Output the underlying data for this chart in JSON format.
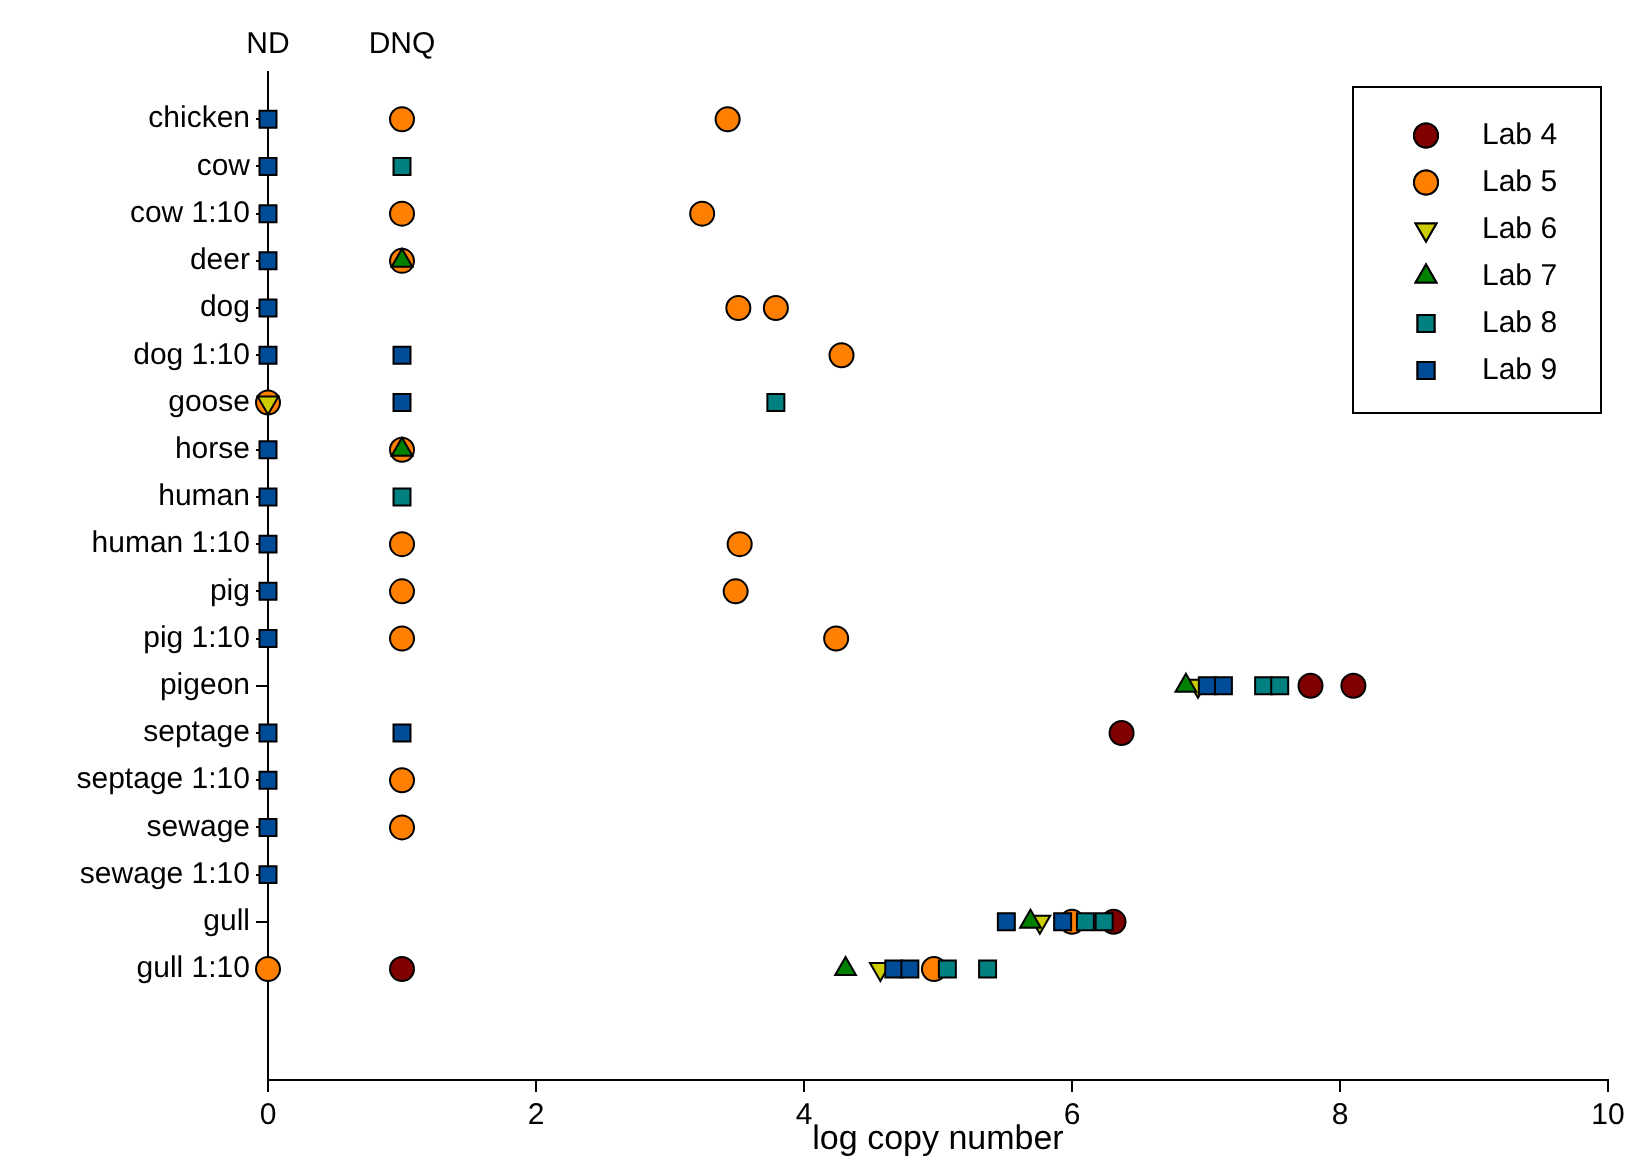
{
  "chart_data": {
    "type": "scatter",
    "orientation": "horizontal",
    "xlabel": "log copy number",
    "categories": [
      "chicken",
      "cow",
      "cow 1:10",
      "deer",
      "dog",
      "dog 1:10",
      "goose",
      "horse",
      "human",
      "human 1:10",
      "pig",
      "pig 1:10",
      "pigeon",
      "septage",
      "septage 1:10",
      "sewage",
      "sewage 1:10",
      "gull",
      "gull 1:10"
    ],
    "xlim": [
      0,
      10
    ],
    "xticks": [
      0,
      2,
      4,
      6,
      8,
      10
    ],
    "annotations": [
      "ND",
      "DNQ"
    ],
    "grid": false,
    "legend": "top right",
    "series": [
      {
        "name": "Lab 4",
        "color": "#800000",
        "marker": "circle",
        "values": [
          null,
          null,
          null,
          null,
          null,
          null,
          null,
          null,
          null,
          null,
          null,
          null,
          7.78,
          6.37,
          null,
          null,
          null,
          6.31,
          1
        ]
      },
      {
        "color": "#800000",
        "marker": "circle",
        "values": [
          null,
          null,
          null,
          null,
          null,
          null,
          null,
          null,
          null,
          null,
          null,
          null,
          8.1,
          null,
          null,
          null,
          null,
          null,
          null
        ]
      },
      {
        "name": "Lab 5",
        "color": "#ff8000",
        "marker": "circle",
        "values": [
          1,
          null,
          1,
          1,
          3.51,
          4.28,
          0,
          1,
          null,
          1,
          1,
          1,
          null,
          null,
          1,
          1,
          null,
          6.0,
          0
        ]
      },
      {
        "color": "#ff8000",
        "marker": "circle",
        "values": [
          3.43,
          null,
          3.24,
          null,
          3.79,
          null,
          null,
          null,
          null,
          3.52,
          3.49,
          4.24,
          null,
          null,
          null,
          null,
          null,
          null,
          4.97
        ]
      },
      {
        "name": "Lab 6",
        "color": "#cccc00",
        "marker": "triangle-down",
        "values": [
          null,
          null,
          null,
          null,
          null,
          null,
          0,
          null,
          null,
          null,
          null,
          null,
          6.94,
          null,
          null,
          null,
          null,
          5.76,
          4.57
        ]
      },
      {
        "name": "Lab 7",
        "color": "#008000",
        "marker": "triangle",
        "values": [
          null,
          null,
          null,
          1,
          null,
          null,
          null,
          1,
          null,
          null,
          null,
          null,
          6.85,
          null,
          null,
          null,
          null,
          5.69,
          4.31
        ]
      },
      {
        "name": "Lab 8",
        "color": "#008080",
        "marker": "square",
        "values": [
          null,
          1,
          null,
          null,
          null,
          null,
          3.79,
          null,
          1,
          null,
          null,
          null,
          7.43,
          null,
          null,
          null,
          null,
          6.1,
          5.07
        ]
      },
      {
        "color": "#008080",
        "marker": "square",
        "values": [
          null,
          null,
          null,
          null,
          null,
          null,
          null,
          null,
          null,
          null,
          null,
          null,
          7.55,
          null,
          null,
          null,
          null,
          6.24,
          5.37
        ]
      },
      {
        "name": "Lab 9",
        "color": "#004c99",
        "marker": "square",
        "values": [
          0,
          0,
          0,
          0,
          0,
          0,
          null,
          0,
          0,
          0,
          0,
          0,
          7.01,
          0,
          0,
          0,
          0,
          5.51,
          4.67
        ]
      },
      {
        "color": "#004c99",
        "marker": "square",
        "values": [
          null,
          null,
          null,
          null,
          null,
          1,
          1,
          null,
          null,
          null,
          null,
          null,
          7.13,
          1,
          null,
          null,
          null,
          5.93,
          4.79
        ]
      }
    ]
  }
}
